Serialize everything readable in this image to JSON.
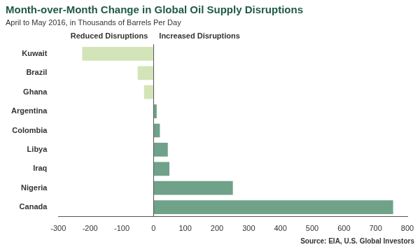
{
  "chart_data": {
    "type": "bar",
    "orientation": "horizontal",
    "title": "Month-over-Month Change in Global Oil Supply Disruptions",
    "subtitle": "April to May 2016, in Thousands of Barrels Per Day",
    "annotations": [
      "Reduced Disruptions",
      "Increased Disruptions"
    ],
    "source": "Source: EIA, U.S. Global Investors",
    "categories": [
      "Kuwait",
      "Brazil",
      "Ghana",
      "Argentina",
      "Colombia",
      "Libya",
      "Iraq",
      "Nigeria",
      "Canada"
    ],
    "values": [
      -225,
      -50,
      -30,
      10,
      20,
      45,
      50,
      250,
      755
    ],
    "colors": [
      "#d3e5b8",
      "#d3e5b8",
      "#d3e5b8",
      "#6fa289",
      "#6fa289",
      "#6fa289",
      "#6fa289",
      "#6fa289",
      "#6fa289"
    ],
    "xlim": [
      -300,
      800
    ],
    "xticks": [
      -300,
      -200,
      -100,
      0,
      100,
      200,
      300,
      400,
      500,
      600,
      700,
      800
    ],
    "grid": false
  }
}
